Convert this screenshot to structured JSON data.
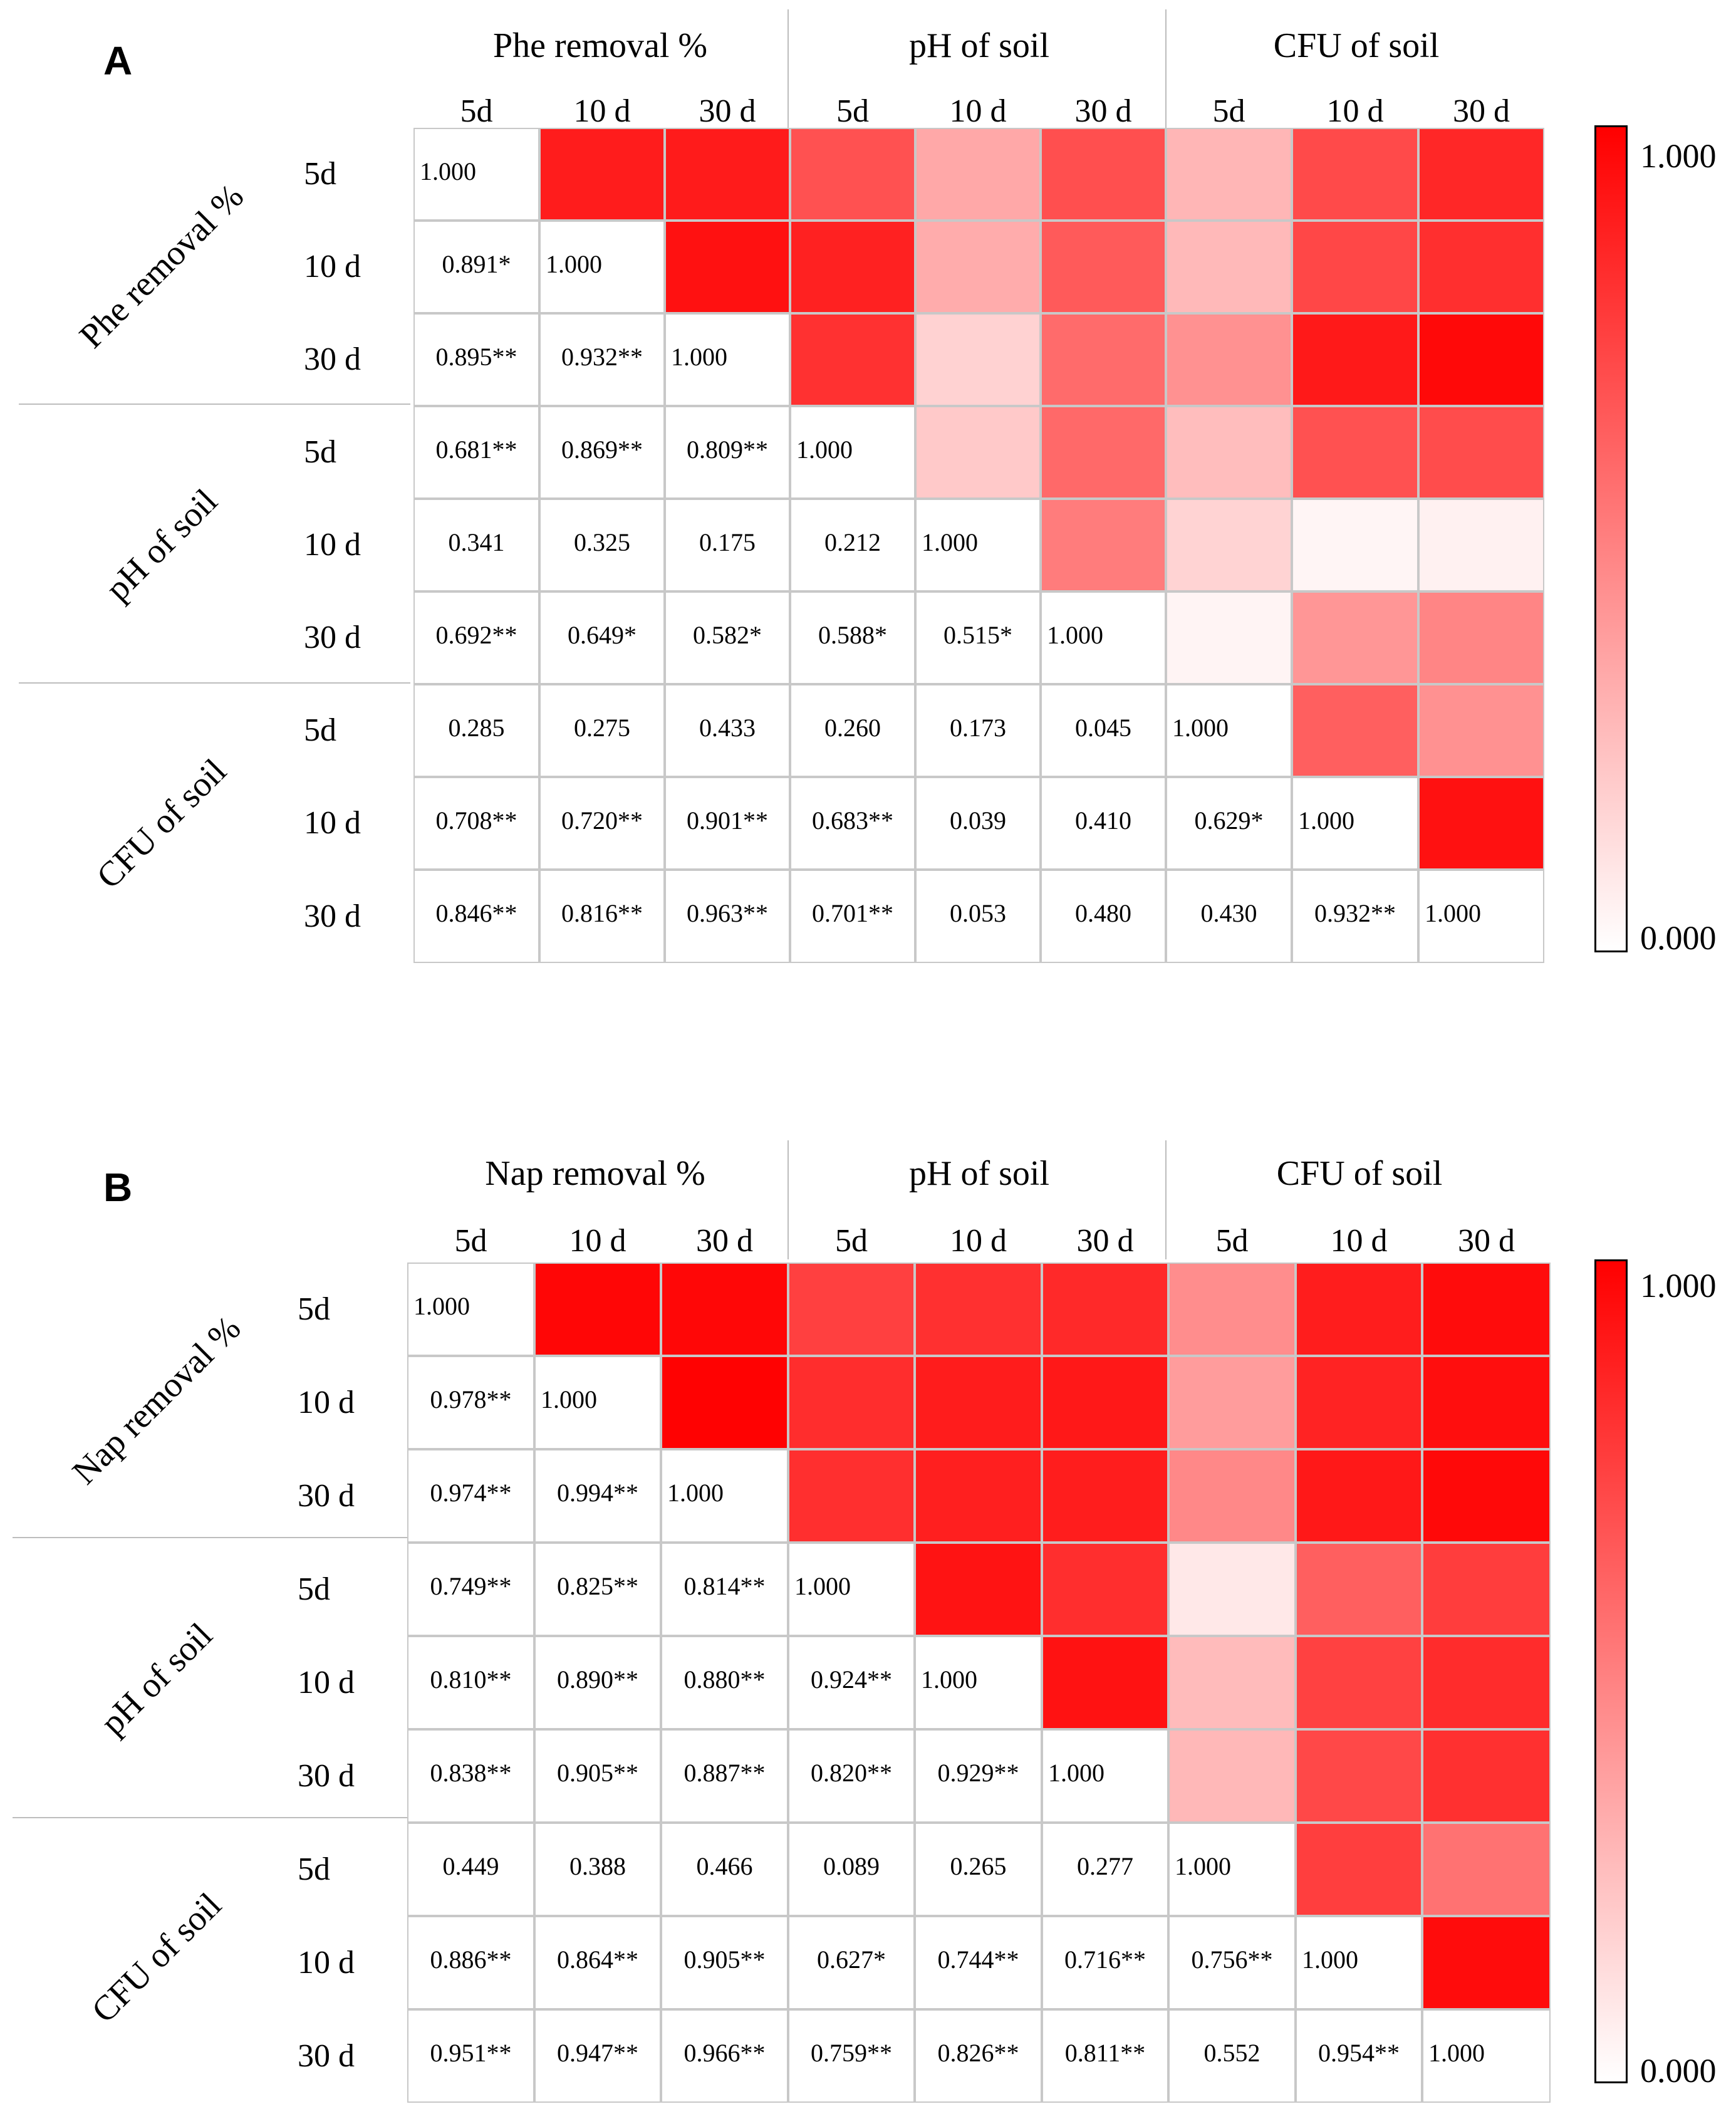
{
  "chart_data": [
    {
      "type": "heatmap",
      "panel_label": "A",
      "column_groups": [
        "Phe removal %",
        "pH of soil",
        "CFU of soil"
      ],
      "row_groups": [
        "Phe removal %",
        "pH of soil",
        "CFU of soil"
      ],
      "categories": [
        "5d",
        "10 d",
        "30 d",
        "5d",
        "10 d",
        "30 d",
        "5d",
        "10 d",
        "30 d"
      ],
      "lower_labels": [
        [
          "1.000",
          "",
          "",
          "",
          "",
          "",
          "",
          "",
          ""
        ],
        [
          "0.891*",
          "1.000",
          "",
          "",
          "",
          "",
          "",
          "",
          ""
        ],
        [
          "0.895**",
          "0.932**",
          "1.000",
          "",
          "",
          "",
          "",
          "",
          ""
        ],
        [
          "0.681**",
          "0.869**",
          "0.809**",
          "1.000",
          "",
          "",
          "",
          "",
          ""
        ],
        [
          "0.341",
          "0.325",
          "0.175",
          "0.212",
          "1.000",
          "",
          "",
          "",
          ""
        ],
        [
          "0.692**",
          "0.649*",
          "0.582*",
          "0.588*",
          "0.515*",
          "1.000",
          "",
          "",
          ""
        ],
        [
          "0.285",
          "0.275",
          "0.433",
          "0.260",
          "0.173",
          "0.045",
          "1.000",
          "",
          ""
        ],
        [
          "0.708**",
          "0.720**",
          "0.901**",
          "0.683**",
          "0.039",
          "0.410",
          "0.629*",
          "1.000",
          ""
        ],
        [
          "0.846**",
          "0.816**",
          "0.963**",
          "0.701**",
          "0.053",
          "0.480",
          "0.430",
          "0.932**",
          "1.000"
        ]
      ],
      "colorbar": {
        "min": 0.0,
        "max": 1.0,
        "min_label": "0.000",
        "max_label": "1.000",
        "low_color": "#ffffff",
        "high_color": "#ff0000"
      }
    },
    {
      "type": "heatmap",
      "panel_label": "B",
      "column_groups": [
        "Nap removal %",
        "pH of soil",
        "CFU of soil"
      ],
      "row_groups": [
        "Nap removal %",
        "pH of soil",
        "CFU of soil"
      ],
      "categories": [
        "5d",
        "10 d",
        "30 d",
        "5d",
        "10 d",
        "30 d",
        "5d",
        "10 d",
        "30 d"
      ],
      "lower_labels": [
        [
          "1.000",
          "",
          "",
          "",
          "",
          "",
          "",
          "",
          ""
        ],
        [
          "0.978**",
          "1.000",
          "",
          "",
          "",
          "",
          "",
          "",
          ""
        ],
        [
          "0.974**",
          "0.994**",
          "1.000",
          "",
          "",
          "",
          "",
          "",
          ""
        ],
        [
          "0.749**",
          "0.825**",
          "0.814**",
          "1.000",
          "",
          "",
          "",
          "",
          ""
        ],
        [
          "0.810**",
          "0.890**",
          "0.880**",
          "0.924**",
          "1.000",
          "",
          "",
          "",
          ""
        ],
        [
          "0.838**",
          "0.905**",
          "0.887**",
          "0.820**",
          "0.929**",
          "1.000",
          "",
          "",
          ""
        ],
        [
          "0.449",
          "0.388",
          "0.466",
          "0.089",
          "0.265",
          "0.277",
          "1.000",
          "",
          ""
        ],
        [
          "0.886**",
          "0.864**",
          "0.905**",
          "0.627*",
          "0.744**",
          "0.716**",
          "0.756**",
          "1.000",
          ""
        ],
        [
          "0.951**",
          "0.947**",
          "0.966**",
          "0.759**",
          "0.826**",
          "0.811**",
          "0.552",
          "0.954**",
          "1.000"
        ]
      ],
      "colorbar": {
        "min": 0.0,
        "max": 1.0,
        "min_label": "0.000",
        "max_label": "1.000",
        "low_color": "#ffffff",
        "high_color": "#ff0000"
      }
    }
  ]
}
